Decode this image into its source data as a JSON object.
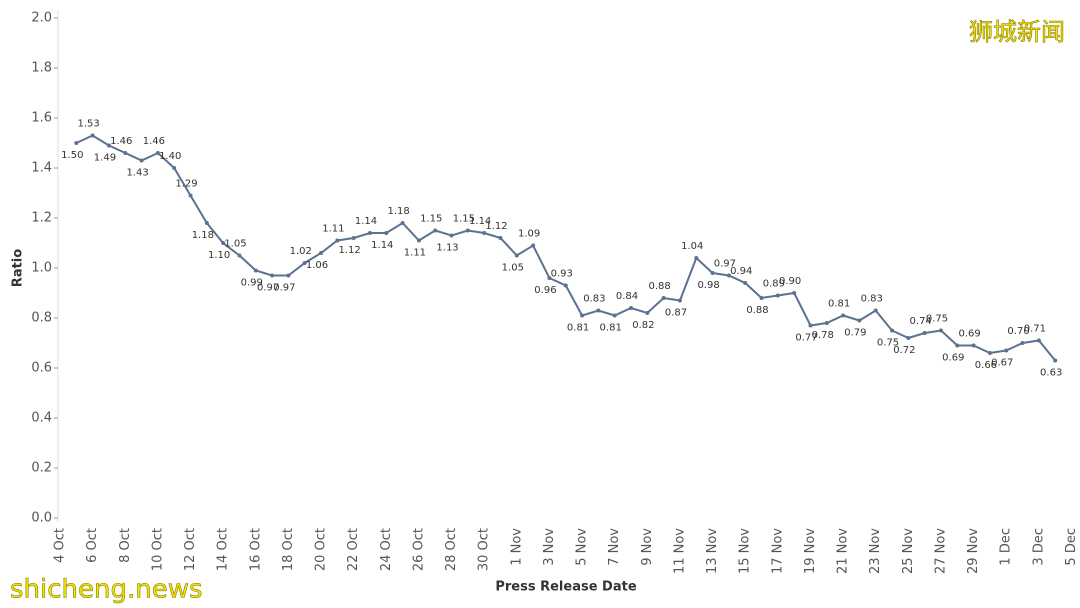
{
  "chart_data": {
    "type": "line",
    "x_label": "Press Release Date",
    "y_label": "Ratio",
    "annotations": [
      "狮城新闻",
      "shicheng.news"
    ],
    "categories": [
      "4 Oct",
      null,
      "6 Oct",
      null,
      "8 Oct",
      null,
      "10 Oct",
      null,
      "12 Oct",
      null,
      "14 Oct",
      null,
      "16 Oct",
      null,
      "18 Oct",
      null,
      "20 Oct",
      null,
      "22 Oct",
      null,
      "24 Oct",
      null,
      "26 Oct",
      null,
      "28 Oct",
      null,
      "30 Oct",
      null,
      "1 Nov",
      null,
      "3 Nov",
      null,
      "5 Nov",
      null,
      "7 Nov",
      null,
      "9 Nov",
      null,
      "11 Nov",
      null,
      "13 Nov",
      null,
      "15 Nov",
      null,
      "17 Nov",
      null,
      "19 Nov",
      null,
      "21 Nov",
      null,
      "23 Nov",
      null,
      "25 Nov",
      null,
      "27 Nov",
      null,
      "29 Nov",
      null,
      "1 Dec",
      null,
      "3 Dec",
      null,
      "5 Dec"
    ],
    "series": [
      {
        "name": "Ratio",
        "color": "#5b7291",
        "values": [
          null,
          1.5,
          1.53,
          1.49,
          1.46,
          1.43,
          1.46,
          1.4,
          1.29,
          1.18,
          1.1,
          1.05,
          0.99,
          0.97,
          0.97,
          1.02,
          1.06,
          1.11,
          1.12,
          1.14,
          1.14,
          1.18,
          1.11,
          1.15,
          1.13,
          1.15,
          1.14,
          1.12,
          1.05,
          1.09,
          0.96,
          0.93,
          0.81,
          0.83,
          0.81,
          0.84,
          0.82,
          0.88,
          0.87,
          1.04,
          0.98,
          0.97,
          0.94,
          0.88,
          0.89,
          0.9,
          0.77,
          0.78,
          0.81,
          0.79,
          0.83,
          0.75,
          0.72,
          0.74,
          0.75,
          0.69,
          0.69,
          0.66,
          0.67,
          0.7,
          0.71,
          0.63,
          null
        ],
        "value_labels": [
          null,
          "1.50",
          "1.53",
          "1.49",
          "1.46",
          "1.43",
          "1.46",
          "1.40",
          "1.29",
          "1.18",
          "1.10",
          "1.05",
          "0.99",
          "0.97",
          "0.97",
          "1.02",
          "1.06",
          "1.11",
          "1.12",
          "1.14",
          "1.14",
          "1.18",
          "1.11",
          "1.15",
          "1.13",
          "1.15",
          "1.14",
          "1.12",
          "1.05",
          "1.09",
          "0.96",
          "0.93",
          "0.81",
          "0.83",
          "0.81",
          "0.84",
          "0.82",
          "0.88",
          "0.87",
          "1.04",
          "0.98",
          "0.97",
          "0.94",
          "0.88",
          "0.89",
          "0.90",
          "0.77",
          "0.78",
          "0.81",
          "0.79",
          "0.83",
          "0.75",
          "0.72",
          "0.74",
          "0.75",
          "0.69",
          "0.69",
          "0.66",
          "0.67",
          "0.70",
          "0.71",
          "0.63",
          null
        ]
      }
    ],
    "ylim": [
      0,
      2
    ],
    "yticks": [
      {
        "value": 0,
        "label": "0.0"
      },
      {
        "value": 0.2,
        "label": "0.2"
      },
      {
        "value": 0.4,
        "label": "0.4"
      },
      {
        "value": 0.6,
        "label": "0.6"
      },
      {
        "value": 0.8,
        "label": "0.8"
      },
      {
        "value": 1,
        "label": "1.0"
      },
      {
        "value": 1.2,
        "label": "1.2"
      },
      {
        "value": 1.4,
        "label": "1.4"
      },
      {
        "value": 1.6,
        "label": "1.6"
      },
      {
        "value": 1.8,
        "label": "1.8"
      },
      {
        "value": 2,
        "label": "2.0"
      }
    ],
    "grid": false
  }
}
